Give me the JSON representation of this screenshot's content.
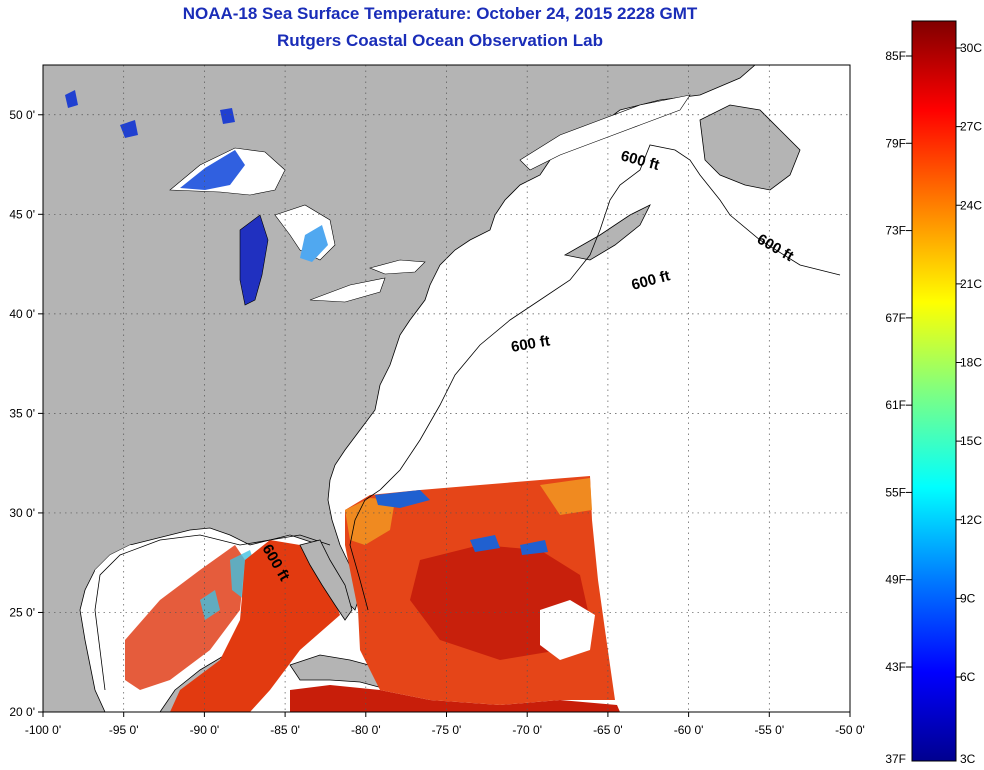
{
  "title": "NOAA-18 Sea Surface Temperature:  October 24, 2015 2228 GMT",
  "subtitle": "Rutgers Coastal Ocean Observation Lab",
  "map": {
    "lon_ticks": [
      "-100 0'",
      "-95 0'",
      "-90 0'",
      "-85 0'",
      "-80 0'",
      "-75 0'",
      "-70 0'",
      "-65 0'",
      "-60 0'",
      "-55 0'",
      "-50 0'"
    ],
    "lat_ticks": [
      "50 0'",
      "45 0'",
      "40 0'",
      "35 0'",
      "30 0'",
      "25 0'",
      "20 0'"
    ],
    "lon_range": [
      -100,
      -50
    ],
    "lat_range": [
      20,
      52.5
    ],
    "grid": "dotted",
    "land_color": "#b4b4b4",
    "contour_label": "600 ft"
  },
  "colorbar": {
    "f_labels": [
      "85F",
      "79F",
      "73F",
      "67F",
      "61F",
      "55F",
      "49F",
      "43F",
      "37F"
    ],
    "c_labels": [
      "30C",
      "27C",
      "24C",
      "21C",
      "18C",
      "15C",
      "12C",
      "9C",
      "6C",
      "3C"
    ],
    "stops": [
      "#00008f",
      "#0000ff",
      "#0080ff",
      "#00ffff",
      "#80ff80",
      "#ffff00",
      "#ff8000",
      "#ff0000",
      "#800000"
    ]
  }
}
